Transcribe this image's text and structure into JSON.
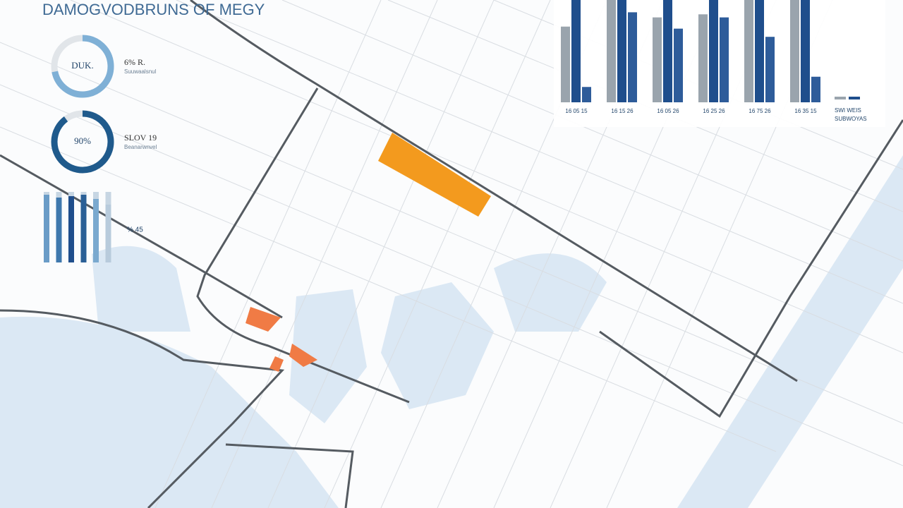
{
  "title": "DAMOGVODBRUNS OF MEGY",
  "donuts": [
    {
      "center_label": "DUK.",
      "side_label": "6% R.",
      "side_sublabel": "Suuwaalsnul",
      "value": 72,
      "color": "#7fb0d6"
    },
    {
      "center_label": "90%",
      "side_label": "SLOV 19",
      "side_sublabel": "Beanarwnvel",
      "value": 90,
      "color": "#1f5a8c"
    }
  ],
  "mini_chart": {
    "label": "% 45",
    "values": [
      96,
      92,
      94,
      96,
      90,
      82
    ],
    "colors": [
      "#6a9cc7",
      "#3f78ad",
      "#1f4e8c",
      "#2a5f96",
      "#7aa9cf",
      "#b8cbdc"
    ],
    "ylim": [
      0,
      100
    ]
  },
  "bar_chart": {
    "categories": [
      "16 05 15",
      "16 15 26",
      "16 05 26",
      "16 25 26",
      "16 75 26",
      "16 35 15"
    ],
    "series": [
      {
        "color": "#9aa4ad",
        "values": [
          74,
          100,
          83,
          86,
          100,
          100
        ]
      },
      {
        "color": "#1f4e8c",
        "values": [
          100,
          100,
          100,
          100,
          100,
          100
        ]
      },
      {
        "color": "#2e5c9a",
        "values": [
          15,
          88,
          72,
          83,
          64,
          25
        ]
      }
    ],
    "ylim": [
      0,
      100
    ],
    "legend_labels": [
      "SWI WEIS",
      "SUBWOYAS"
    ]
  }
}
